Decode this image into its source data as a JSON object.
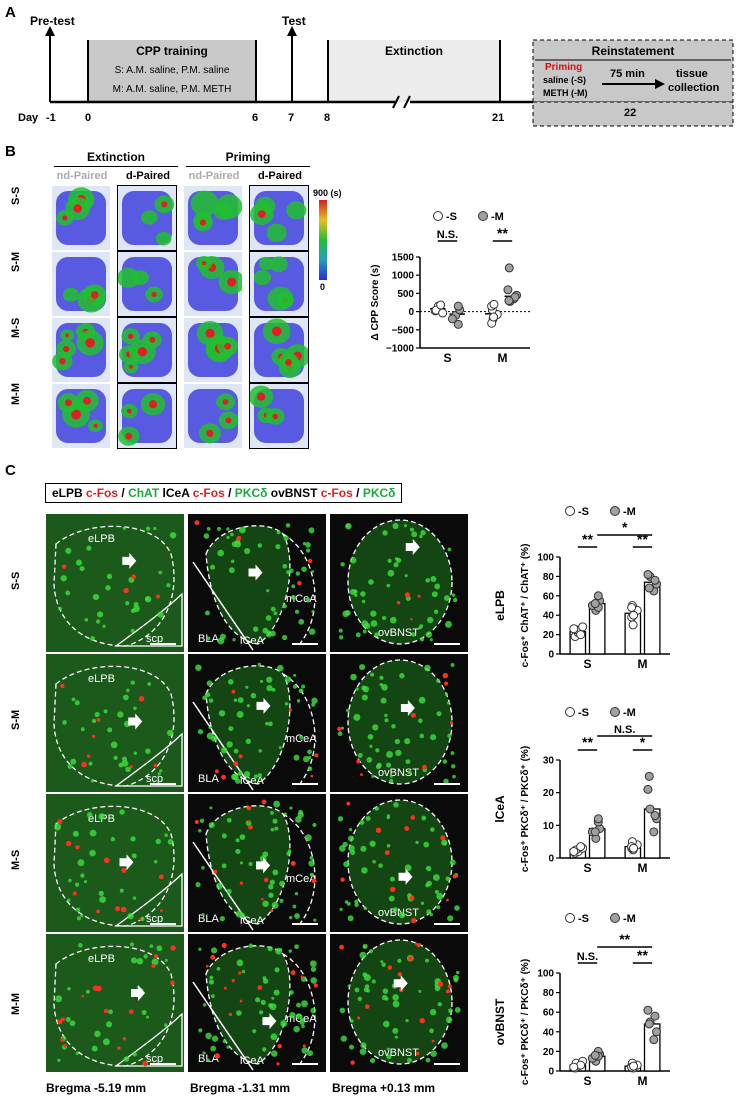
{
  "panelA": {
    "letter": "A",
    "pretest": "Pre-test",
    "test": "Test",
    "cpp_title": "CPP training",
    "cpp_line1": "S: A.M. saline, P.M. saline",
    "cpp_line2": "M: A.M. saline, P.M. METH",
    "extinction": "Extinction",
    "reinstatement": "Reinstatement",
    "priming": "Priming",
    "priming_s": "saline (-S)",
    "priming_m": "METH (-M)",
    "delay": "75 min",
    "tissue1": "tissue",
    "tissue2": "collection",
    "day_label": "Day",
    "days": [
      "-1",
      "0",
      "6",
      "7",
      "8",
      "21",
      "22"
    ]
  },
  "panelB": {
    "letter": "B",
    "extinction": "Extinction",
    "priming": "Priming",
    "col_labels": [
      "nd-Paired",
      "d-Paired",
      "nd-Paired",
      "d-Paired"
    ],
    "row_labels": [
      "S-S",
      "S-M",
      "M-S",
      "M-M"
    ],
    "scale_max": "900 (s)",
    "scale_min": "0",
    "colors": {
      "low": "#2b2bd9",
      "mid": "#22c030",
      "high": "#e02020",
      "bg": "#dfe6f5"
    }
  },
  "panelC": {
    "letter": "C",
    "legend": {
      "eLPB": "eLPB",
      "cfos1": "c-Fos",
      "sep1": " / ",
      "chat": "ChAT",
      "lcea": "lCeA",
      "cfos2": "c-Fos",
      "sep2": " / ",
      "pkc1": "PKCδ",
      "ovbnst": "ovBNST",
      "cfos3": "c-Fos",
      "sep3": " / ",
      "pkc2": "PKCδ"
    },
    "row_labels": [
      "S-S",
      "S-M",
      "M-S",
      "M-M"
    ],
    "region_labels": {
      "elpb": "eLPB",
      "scp": "scp",
      "bla": "BLA",
      "lcea": "lCeA",
      "mcea": "mCeA",
      "ovbnst": "ovBNST"
    },
    "bregma": [
      "Bregma -5.19 mm",
      "Bregma -1.31 mm",
      "Bregma +0.13 mm"
    ]
  },
  "chart_data": [
    {
      "type": "bar",
      "panel": "B",
      "legend": [
        "-S",
        "-M"
      ],
      "categories": [
        "S",
        "M"
      ],
      "ylabel": "Δ CPP Score (s)",
      "ylim": [
        -1000,
        1500
      ],
      "yticks": [
        "1500",
        "1000",
        "500",
        "0",
        "−500",
        "−1000"
      ],
      "series": [
        {
          "name": "-S",
          "values": [
            80,
            -60
          ],
          "points": [
            [
              20,
              150,
              40,
              -40,
              180
            ],
            [
              -200,
              -320,
              -80,
              50,
              150,
              -150,
              200
            ]
          ]
        },
        {
          "name": "-M",
          "values": [
            -70,
            420
          ],
          "points": [
            [
              -100,
              -200,
              50,
              150,
              -350
            ],
            [
              350,
              450,
              280,
              600,
              1200,
              400,
              300
            ]
          ]
        }
      ],
      "significance": [
        "N.S.",
        "**"
      ]
    },
    {
      "type": "bar",
      "panel": "C-eLPB",
      "title": "eLPB",
      "legend": [
        "-S",
        "-M"
      ],
      "categories": [
        "S",
        "M"
      ],
      "ylabel": "c-Fos⁺ ChAT⁺ / ChAT⁺ (%)",
      "ylim": [
        0,
        100
      ],
      "yticks": [
        "100",
        "80",
        "60",
        "40",
        "20",
        "0"
      ],
      "series": [
        {
          "name": "-S",
          "values": [
            23,
            42
          ],
          "points": [
            [
              18,
              22,
              25,
              28,
              20,
              26
            ],
            [
              30,
              38,
              45,
              50,
              48,
              40
            ]
          ]
        },
        {
          "name": "-M",
          "values": [
            52,
            74
          ],
          "points": [
            [
              45,
              50,
              55,
              60,
              48,
              52
            ],
            [
              65,
              72,
              80,
              82,
              68,
              76
            ]
          ]
        }
      ],
      "significance": [
        "**",
        "**",
        "*"
      ]
    },
    {
      "type": "bar",
      "panel": "C-lCeA",
      "title": "lCeA",
      "legend": [
        "-S",
        "-M"
      ],
      "categories": [
        "S",
        "M"
      ],
      "ylabel": "c-Fos⁺ PKCδ⁺ / PKCδ⁺ (%)",
      "ylim": [
        0,
        30
      ],
      "yticks": [
        "30",
        "20",
        "10",
        "0"
      ],
      "series": [
        {
          "name": "-S",
          "values": [
            2.5,
            3.5
          ],
          "points": [
            [
              1.5,
              2,
              2.5,
              3,
              3.5,
              2
            ],
            [
              2.5,
              3,
              4,
              5,
              3.5,
              3
            ]
          ]
        },
        {
          "name": "-M",
          "values": [
            9,
            15
          ],
          "points": [
            [
              6,
              8,
              9,
              11,
              12,
              8
            ],
            [
              8,
              12,
              15,
              21,
              25,
              13
            ]
          ]
        }
      ],
      "significance": [
        "**",
        "*",
        "N.S."
      ]
    },
    {
      "type": "bar",
      "panel": "C-ovBNST",
      "title": "ovBNST",
      "legend": [
        "-S",
        "-M"
      ],
      "categories": [
        "S",
        "M"
      ],
      "ylabel": "c-Fos⁺ PKCδ⁺ / PKCδ⁺ (%)",
      "ylim": [
        0,
        100
      ],
      "yticks": [
        "100",
        "80",
        "60",
        "40",
        "20",
        "0"
      ],
      "series": [
        {
          "name": "-S",
          "values": [
            6,
            5
          ],
          "points": [
            [
              3,
              5,
              8,
              10,
              6,
              4
            ],
            [
              3,
              5,
              6,
              8,
              4,
              5
            ]
          ]
        },
        {
          "name": "-M",
          "values": [
            15,
            48
          ],
          "points": [
            [
              10,
              13,
              17,
              20,
              15,
              16
            ],
            [
              32,
              40,
              50,
              62,
              48,
              56
            ]
          ]
        }
      ],
      "significance": [
        "N.S.",
        "**",
        "**"
      ]
    }
  ]
}
